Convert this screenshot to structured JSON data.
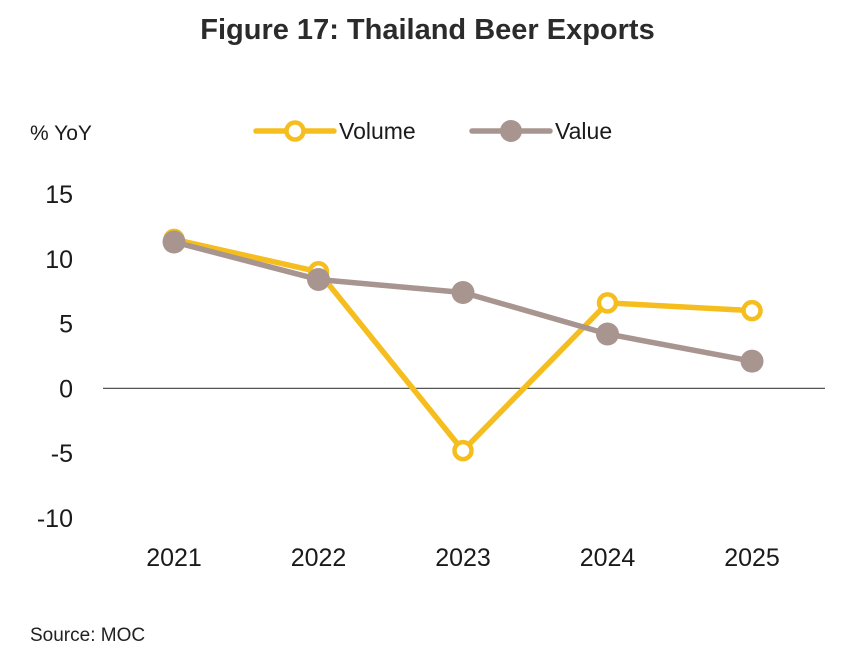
{
  "chart_data": {
    "type": "line",
    "title": "Figure 17: Thailand Beer Exports",
    "ylabel": "% YoY",
    "xlabel": "",
    "categories": [
      "2021",
      "2022",
      "2023",
      "2024",
      "2025"
    ],
    "yticks": [
      "15",
      "10",
      "5",
      "0",
      "-5",
      "-10"
    ],
    "ylim": [
      -10,
      15
    ],
    "grid": false,
    "legend_position": "top",
    "series": [
      {
        "name": "Volume",
        "values": [
          11.5,
          9.0,
          -4.8,
          6.6,
          6.0
        ],
        "color": "#F5BE1E",
        "marker": "hollow-circle"
      },
      {
        "name": "Value",
        "values": [
          11.3,
          8.4,
          7.4,
          4.2,
          2.1
        ],
        "color": "#A8958F",
        "marker": "filled-circle"
      }
    ],
    "source": "Source: MOC"
  }
}
